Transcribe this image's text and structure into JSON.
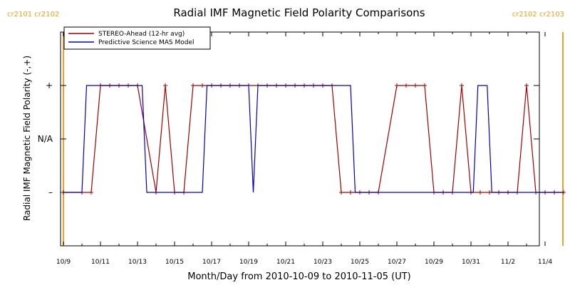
{
  "chart_data": {
    "type": "line",
    "title": "Radial IMF Magnetic Field Polarity Comparisons",
    "xlabel": "Month/Day from 2010-10-09 to 2010-11-05 (UT)",
    "ylabel": "Radial IMF Magnetic Field Polarity (-,+)",
    "x_range": [
      "2010-10-09",
      "2010-11-05"
    ],
    "x_ticks": [
      "10/9",
      "10/11",
      "10/13",
      "10/15",
      "10/17",
      "10/19",
      "10/21",
      "10/23",
      "10/25",
      "10/27",
      "10/29",
      "10/31",
      "11/2",
      "11/4"
    ],
    "y_ticks": [
      {
        "value": -1,
        "label": "–"
      },
      {
        "value": 0,
        "label": "N/A"
      },
      {
        "value": 1,
        "label": "+"
      }
    ],
    "y_range": [
      -2,
      2
    ],
    "rotation_markers": [
      {
        "date": "2010-10-09",
        "label": "cr2101 cr2102",
        "position": "left"
      },
      {
        "date": "2010-11-05",
        "label": "cr2102 cr2103",
        "position": "right"
      }
    ],
    "legend": {
      "placement": "top-left"
    },
    "series": [
      {
        "name": "STEREO-Ahead (12-hr avg)",
        "color": "#a00000",
        "markers": true,
        "points": [
          [
            "2010-10-09",
            -1
          ],
          [
            "2010-10-10",
            -1
          ],
          [
            "2010-10-10T12",
            -1
          ],
          [
            "2010-10-11",
            1
          ],
          [
            "2010-10-11T12",
            1
          ],
          [
            "2010-10-12",
            1
          ],
          [
            "2010-10-12T12",
            1
          ],
          [
            "2010-10-13",
            1
          ],
          [
            "2010-10-14",
            -1
          ],
          [
            "2010-10-14T12",
            1
          ],
          [
            "2010-10-15",
            -1
          ],
          [
            "2010-10-15T12",
            -1
          ],
          [
            "2010-10-16",
            1
          ],
          [
            "2010-10-16T12",
            1
          ],
          [
            "2010-10-17",
            1
          ],
          [
            "2010-10-17T12",
            1
          ],
          [
            "2010-10-18",
            1
          ],
          [
            "2010-10-18T12",
            1
          ],
          [
            "2010-10-19",
            1
          ],
          [
            "2010-10-19T12",
            1
          ],
          [
            "2010-10-20",
            1
          ],
          [
            "2010-10-20T12",
            1
          ],
          [
            "2010-10-21",
            1
          ],
          [
            "2010-10-21T12",
            1
          ],
          [
            "2010-10-22",
            1
          ],
          [
            "2010-10-22T12",
            1
          ],
          [
            "2010-10-23",
            1
          ],
          [
            "2010-10-23T12",
            1
          ],
          [
            "2010-10-24",
            -1
          ],
          [
            "2010-10-24T12",
            -1
          ],
          [
            "2010-10-25",
            -1
          ],
          [
            "2010-10-25T12",
            -1
          ],
          [
            "2010-10-26",
            -1
          ],
          [
            "2010-10-27",
            1
          ],
          [
            "2010-10-27T12",
            1
          ],
          [
            "2010-10-28",
            1
          ],
          [
            "2010-10-28T12",
            1
          ],
          [
            "2010-10-29",
            -1
          ],
          [
            "2010-10-29T12",
            -1
          ],
          [
            "2010-10-30",
            -1
          ],
          [
            "2010-10-30T12",
            1
          ],
          [
            "2010-10-31",
            -1
          ],
          [
            "2010-10-31T12",
            -1
          ],
          [
            "2010-11-01",
            -1
          ],
          [
            "2010-11-01T12",
            -1
          ],
          [
            "2010-11-02",
            -1
          ],
          [
            "2010-11-02T12",
            -1
          ],
          [
            "2010-11-03",
            1
          ],
          [
            "2010-11-03T12",
            -1
          ],
          [
            "2010-11-04",
            -1
          ],
          [
            "2010-11-04T12",
            -1
          ],
          [
            "2010-11-05",
            -1
          ]
        ]
      },
      {
        "name": "Predictive Science MAS Model",
        "color": "#0000c0",
        "markers": false,
        "points": [
          [
            "2010-10-09",
            -1
          ],
          [
            "2010-10-10",
            -1
          ],
          [
            "2010-10-10T06",
            1
          ],
          [
            "2010-10-13T06",
            1
          ],
          [
            "2010-10-13T12",
            -1
          ],
          [
            "2010-10-16T12",
            -1
          ],
          [
            "2010-10-16T18",
            1
          ],
          [
            "2010-10-19T00",
            1
          ],
          [
            "2010-10-19T06",
            -1
          ],
          [
            "2010-10-19T12",
            1
          ],
          [
            "2010-10-24T12",
            1
          ],
          [
            "2010-10-24T18",
            -1
          ],
          [
            "2010-10-31T03",
            -1
          ],
          [
            "2010-10-31T09",
            1
          ],
          [
            "2010-10-31T21",
            1
          ],
          [
            "2010-11-01T03",
            -1
          ],
          [
            "2010-11-05",
            -1
          ]
        ]
      }
    ]
  }
}
